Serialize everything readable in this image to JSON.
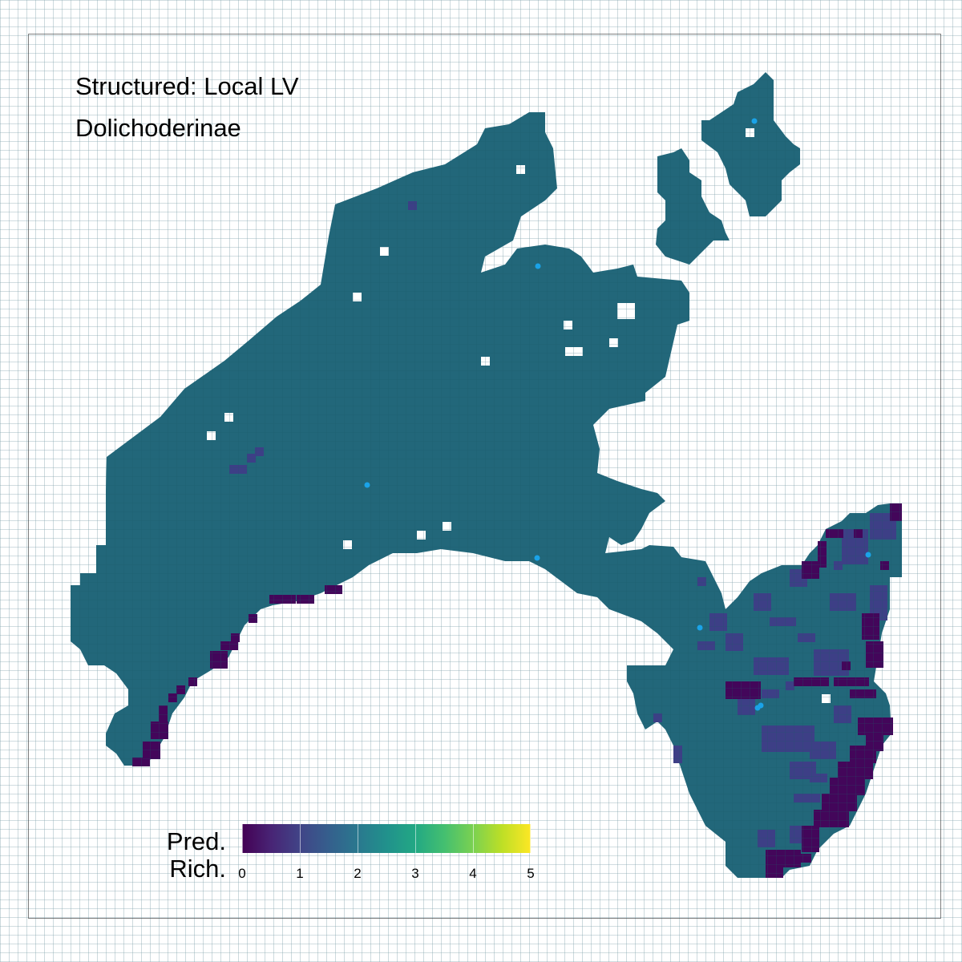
{
  "title": "Structured: Local LV",
  "subtitle": "Dolichoderinae",
  "legend": {
    "title_line1": "Pred.",
    "title_line2": "Rich.",
    "ticks": [
      "0",
      "1",
      "2",
      "3",
      "4",
      "5"
    ],
    "range": [
      0,
      5
    ],
    "palette": "viridis"
  },
  "colors": {
    "base_cell": "#22677a",
    "mid_low_cell": "#3d3f86",
    "low_cell": "#43065a",
    "point": "#1aa3e8",
    "border": "#7f7f7f"
  },
  "map": {
    "dominant_predicted_richness": 2.1,
    "low_richness_region": "southeast",
    "observation_points_count": 7
  }
}
